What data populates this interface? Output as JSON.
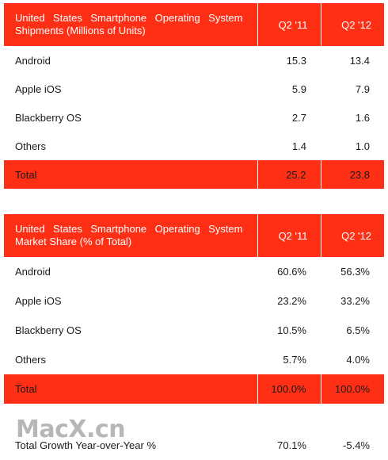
{
  "shipments_table": {
    "title": "United States Smartphone Operating System Shipments (Millions of Units)",
    "col1": "Q2 '11",
    "col2": "Q2 '12",
    "rows": [
      {
        "label": "Android",
        "v1": "15.3",
        "v2": "13.4"
      },
      {
        "label": "Apple iOS",
        "v1": "5.9",
        "v2": "7.9"
      },
      {
        "label": "Blackberry OS",
        "v1": "2.7",
        "v2": "1.6"
      },
      {
        "label": "Others",
        "v1": "1.4",
        "v2": "1.0"
      }
    ],
    "total": {
      "label": "Total",
      "v1": "25.2",
      "v2": "23.8"
    }
  },
  "share_table": {
    "title": "United States Smartphone Operating System Market Share (% of Total)",
    "col1": "Q2 '11",
    "col2": "Q2 '12",
    "rows": [
      {
        "label": "Android",
        "v1": "60.6%",
        "v2": "56.3%"
      },
      {
        "label": "Apple iOS",
        "v1": "23.2%",
        "v2": "33.2%"
      },
      {
        "label": "Blackberry OS",
        "v1": "10.5%",
        "v2": "6.5%"
      },
      {
        "label": "Others",
        "v1": "5.7%",
        "v2": "4.0%"
      }
    ],
    "total": {
      "label": "Total",
      "v1": "100.0%",
      "v2": "100.0%"
    }
  },
  "growth": {
    "label": "Total Growth Year-over-Year %",
    "v1": "70.1%",
    "v2": "-5.4%"
  },
  "watermark": "MacX.cn",
  "colors": {
    "header_bg": "#ff2f16",
    "header_text": "#ffffff"
  }
}
